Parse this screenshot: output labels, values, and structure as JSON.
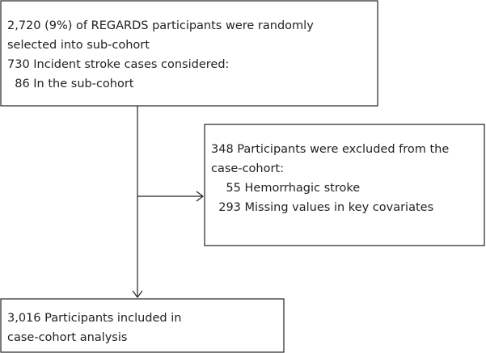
{
  "nodes": [
    {
      "lines": [
        "2,720 (9%) of REGARDS participants were randomly",
        "selected into sub-cohort",
        "730 Incident stroke cases considered:",
        "  86 In the sub-cohort"
      ]
    },
    {
      "lines": [
        "348 Participants were excluded from the",
        "case-cohort:",
        "    55 Hemorrhagic stroke",
        "  293 Missing values in key covariates"
      ]
    },
    {
      "lines": [
        "3,016 Participants included in",
        "case-cohort analysis"
      ]
    }
  ]
}
